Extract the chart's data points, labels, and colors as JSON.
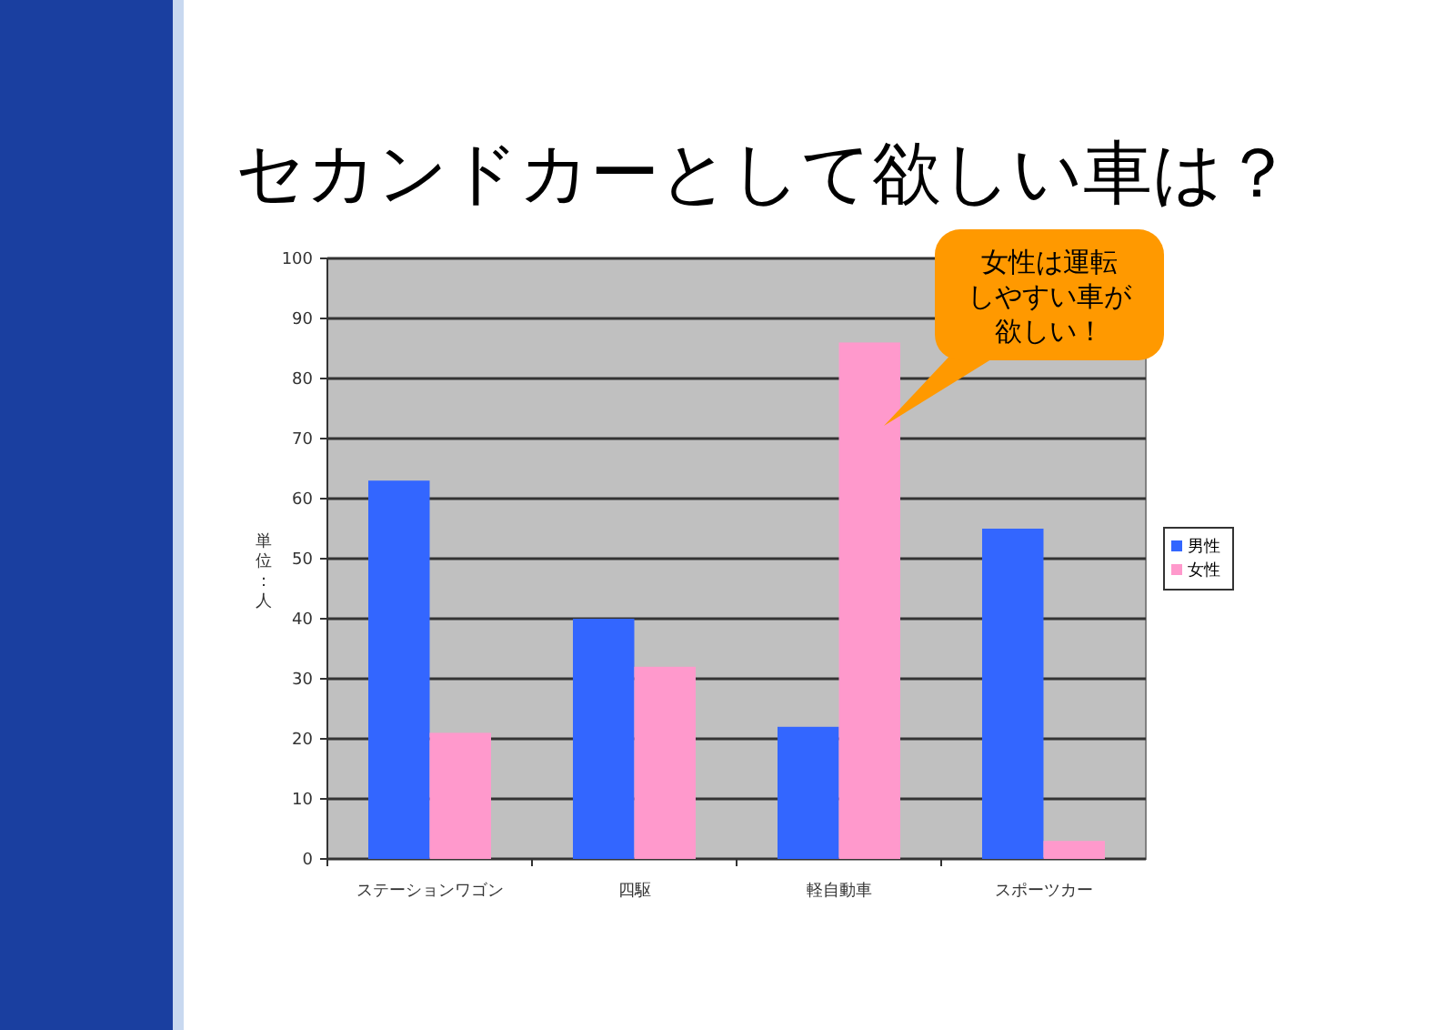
{
  "chart_data": {
    "type": "bar",
    "title": "セカンドカーとして欲しい車は？",
    "ylabel": "単位：人",
    "categories": [
      "ステーションワゴン",
      "四駆",
      "軽自動車",
      "スポーツカー"
    ],
    "series": [
      {
        "name": "男性",
        "color": "#3366ff",
        "values": [
          63,
          40,
          22,
          55
        ]
      },
      {
        "name": "女性",
        "color": "#ff99cc",
        "values": [
          21,
          32,
          86,
          3
        ]
      }
    ],
    "ylim": [
      0,
      100
    ],
    "yticks": [
      0,
      10,
      20,
      30,
      40,
      50,
      60,
      70,
      80,
      90,
      100
    ],
    "grid": "y",
    "legend": "right",
    "annotations": [
      "女性は運転しやすい車が欲しい！"
    ]
  }
}
